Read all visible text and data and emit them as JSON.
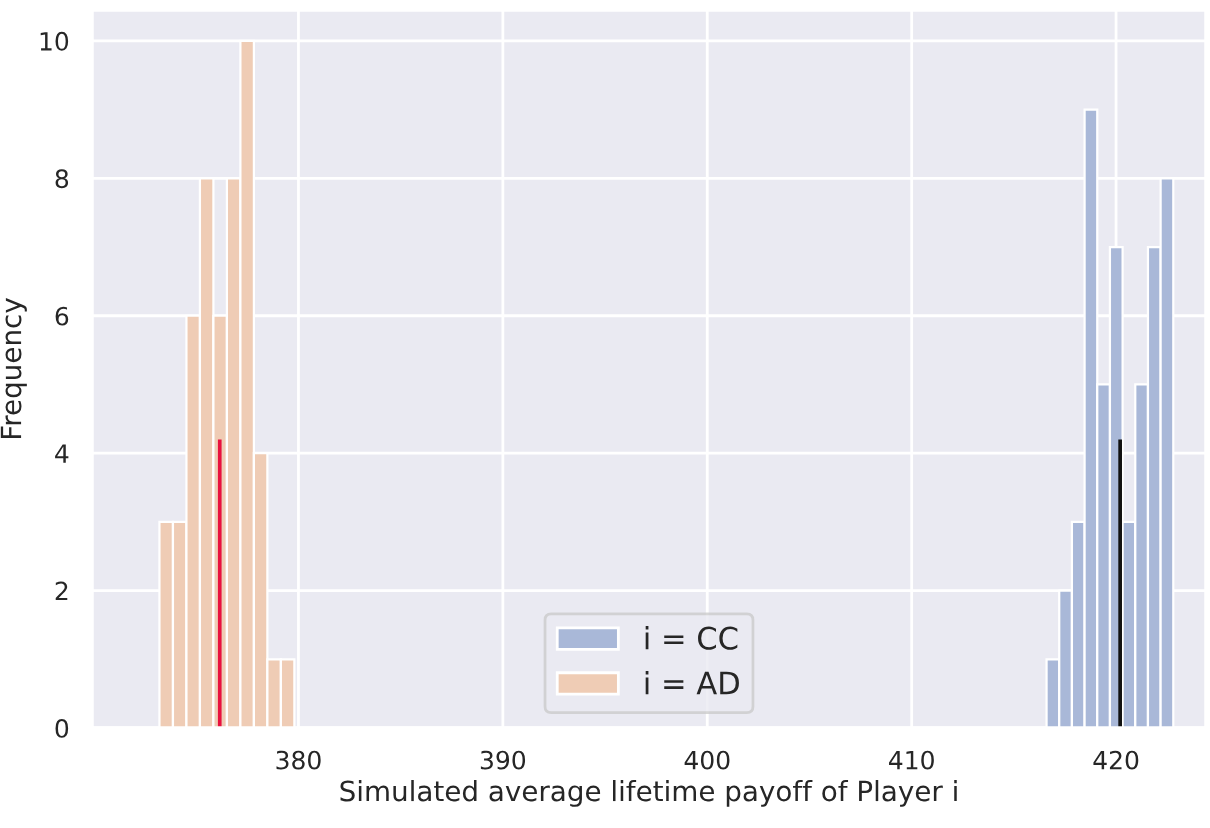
{
  "chart_data": {
    "type": "histogram",
    "xlabel": "Simulated average lifetime payoff of Player i",
    "ylabel": "Frequency",
    "series": [
      {
        "name": "i = CC",
        "color": "#a9b8d8",
        "bins": [
          416.6,
          417.22,
          417.84,
          418.46,
          419.08,
          419.7,
          420.32,
          420.94,
          421.56,
          422.18,
          422.8
        ],
        "values": [
          1,
          2,
          3,
          9,
          5,
          7,
          3,
          5,
          7,
          8
        ]
      },
      {
        "name": "i = AD",
        "color": "#efccb5",
        "bins": [
          373.2,
          373.86,
          374.52,
          375.18,
          375.84,
          376.5,
          377.16,
          377.82,
          378.48,
          379.14,
          379.8
        ],
        "values": [
          3,
          3,
          6,
          8,
          6,
          8,
          10,
          4,
          1,
          1
        ]
      },
      {
        "type": "bar",
        "color": "#e8113f",
        "x": [
          376.15
        ],
        "values": [
          4.2
        ]
      },
      {
        "type": "bar",
        "color": "#111111",
        "x": [
          420.2
        ],
        "values": [
          4.2
        ]
      }
    ],
    "xlim": [
      369.9,
      424.4
    ],
    "ylim": [
      0,
      10.45
    ],
    "xticks": [
      380,
      390,
      400,
      410,
      420
    ],
    "yticks": [
      0,
      2,
      4,
      6,
      8,
      10
    ],
    "grid": true,
    "legend": "bottom"
  }
}
